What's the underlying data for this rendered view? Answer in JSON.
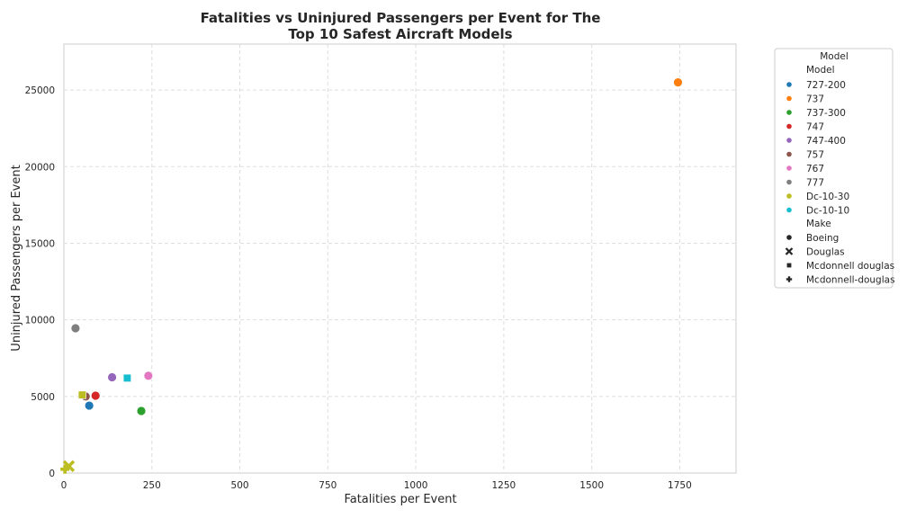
{
  "chart_data": {
    "type": "scatter",
    "title_lines": [
      "Fatalities vs Uninjured Passengers per Event for The",
      "Top 10 Safest Aircraft Models"
    ],
    "xlabel": "Fatalities per Event",
    "ylabel": "Uninjured Passengers per Event",
    "xlim": [
      0,
      1910
    ],
    "ylim": [
      0,
      28000
    ],
    "x_ticks": [
      0,
      250,
      500,
      750,
      1000,
      1250,
      1500,
      1750
    ],
    "y_ticks": [
      0,
      5000,
      10000,
      15000,
      20000,
      25000
    ],
    "grid": true,
    "legend_placement": "outside-right",
    "legend": {
      "title": "Model",
      "hue_header": "Model",
      "style_header": "Make",
      "models": [
        {
          "name": "727-200",
          "color": "#1f77b4"
        },
        {
          "name": "737",
          "color": "#ff7f0e"
        },
        {
          "name": "737-300",
          "color": "#2ca02c"
        },
        {
          "name": "747",
          "color": "#d62728"
        },
        {
          "name": "747-400",
          "color": "#9467bd"
        },
        {
          "name": "757",
          "color": "#8c564b"
        },
        {
          "name": "767",
          "color": "#e377c2"
        },
        {
          "name": "777",
          "color": "#7f7f7f"
        },
        {
          "name": "Dc-10-30",
          "color": "#bcbd22"
        },
        {
          "name": "Dc-10-10",
          "color": "#17becf"
        }
      ],
      "makes": [
        {
          "name": "Boeing",
          "marker": "circle"
        },
        {
          "name": "Douglas",
          "marker": "x"
        },
        {
          "name": "Mcdonnell douglas",
          "marker": "square"
        },
        {
          "name": "Mcdonnell-douglas",
          "marker": "plus"
        }
      ]
    },
    "points": [
      {
        "model": "737",
        "make": "Boeing",
        "x": 1745,
        "y": 25500
      },
      {
        "model": "777",
        "make": "Boeing",
        "x": 33,
        "y": 9450
      },
      {
        "model": "767",
        "make": "Boeing",
        "x": 240,
        "y": 6350
      },
      {
        "model": "747-400",
        "make": "Boeing",
        "x": 137,
        "y": 6250
      },
      {
        "model": "Dc-10-10",
        "make": "Mcdonnell douglas",
        "x": 180,
        "y": 6200
      },
      {
        "model": "757",
        "make": "Boeing",
        "x": 62,
        "y": 5000
      },
      {
        "model": "747",
        "make": "Boeing",
        "x": 90,
        "y": 5050
      },
      {
        "model": "Dc-10-30",
        "make": "Mcdonnell douglas",
        "x": 52,
        "y": 5100
      },
      {
        "model": "727-200",
        "make": "Boeing",
        "x": 72,
        "y": 4400
      },
      {
        "model": "737-300",
        "make": "Boeing",
        "x": 220,
        "y": 4050
      },
      {
        "model": "Dc-10-30",
        "make": "Douglas",
        "x": 14,
        "y": 450
      },
      {
        "model": "Dc-10-30",
        "make": "Mcdonnell-douglas",
        "x": 3,
        "y": 250
      }
    ]
  }
}
